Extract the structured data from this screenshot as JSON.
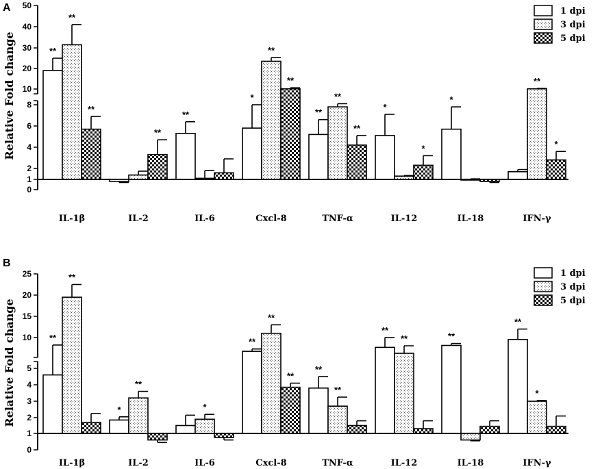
{
  "chart_data": [
    {
      "panel": "A",
      "type": "bar",
      "ylabel": "Relative Fold change",
      "categories": [
        "IL-1β",
        "IL-2",
        "IL-6",
        "Cxcl-8",
        "TNF-α",
        "IL-12",
        "IL-18",
        "IFN-γ"
      ],
      "broken_axis": true,
      "ylim_lower": [
        0,
        8
      ],
      "ylim_upper": [
        10,
        50
      ],
      "yticks_lower": [
        "0",
        "1",
        "2",
        "4",
        "6",
        "8"
      ],
      "yticks_upper": [
        "10",
        "20",
        "30",
        "40",
        "50"
      ],
      "series": [
        {
          "name": "1 dpi",
          "values": [
            19,
            0.8,
            5.3,
            5.8,
            5.2,
            5.1,
            5.7,
            1.7
          ],
          "errors": [
            6,
            0.1,
            1.1,
            2.2,
            1.4,
            2.0,
            2.1,
            0.2
          ],
          "sig": [
            "**",
            "",
            "**",
            "*",
            "**",
            "*",
            "*",
            ""
          ]
        },
        {
          "name": "3 dpi",
          "values": [
            31.5,
            1.4,
            1.1,
            23.5,
            7.8,
            1.3,
            1.0,
            9.5
          ],
          "errors": [
            9.5,
            0.35,
            0.7,
            1.8,
            0.3,
            0.05,
            0.05,
            0.8
          ],
          "sig": [
            "**",
            "",
            "",
            "**",
            "**",
            "",
            "",
            "**"
          ]
        },
        {
          "name": "5 dpi",
          "values": [
            5.7,
            3.3,
            1.6,
            9.5,
            4.2,
            2.3,
            0.8,
            2.8
          ],
          "errors": [
            1.2,
            1.4,
            1.3,
            0.1,
            0.9,
            0.9,
            0.1,
            0.8
          ],
          "sig": [
            "**",
            "**",
            "",
            "**",
            "**",
            "*",
            "",
            "*"
          ]
        }
      ]
    },
    {
      "panel": "B",
      "type": "bar",
      "ylabel": "Relative Fold change",
      "categories": [
        "IL-1β",
        "IL-2",
        "IL-6",
        "Cxcl-8",
        "TNF-α",
        "IL-12",
        "IL-18",
        "IFN-γ"
      ],
      "broken_axis": true,
      "ylim_lower": [
        0,
        5
      ],
      "ylim_upper": [
        6,
        25
      ],
      "yticks_lower": [
        "0",
        "1",
        "2",
        "3",
        "4",
        "5"
      ],
      "yticks_upper": [
        "10",
        "15",
        "20",
        "25"
      ],
      "series": [
        {
          "name": "1 dpi",
          "values": [
            4.6,
            1.85,
            1.5,
            6.5,
            3.8,
            7.5,
            8.0,
            9.5
          ],
          "errors": [
            3.5,
            0.2,
            0.65,
            0.6,
            0.7,
            2.5,
            0.5,
            2.5
          ],
          "sig": [
            "**",
            "*",
            "",
            "**",
            "**",
            "**",
            "**",
            "**"
          ]
        },
        {
          "name": "3 dpi",
          "values": [
            19.5,
            3.2,
            1.9,
            11.0,
            2.7,
            6.0,
            0.6,
            3.0
          ],
          "errors": [
            3.0,
            0.4,
            0.3,
            2.0,
            0.55,
            1.9,
            0.05,
            0.05
          ],
          "sig": [
            "**",
            "**",
            "*",
            "**",
            "**",
            "**",
            "",
            "*"
          ]
        },
        {
          "name": "5 dpi",
          "values": [
            1.7,
            0.6,
            0.75,
            3.85,
            1.5,
            1.3,
            1.45,
            1.45
          ],
          "errors": [
            0.55,
            0.15,
            0.15,
            0.25,
            0.3,
            0.5,
            0.35,
            0.65
          ],
          "sig": [
            "",
            "",
            "",
            "**",
            "",
            "",
            "",
            ""
          ]
        }
      ]
    }
  ]
}
